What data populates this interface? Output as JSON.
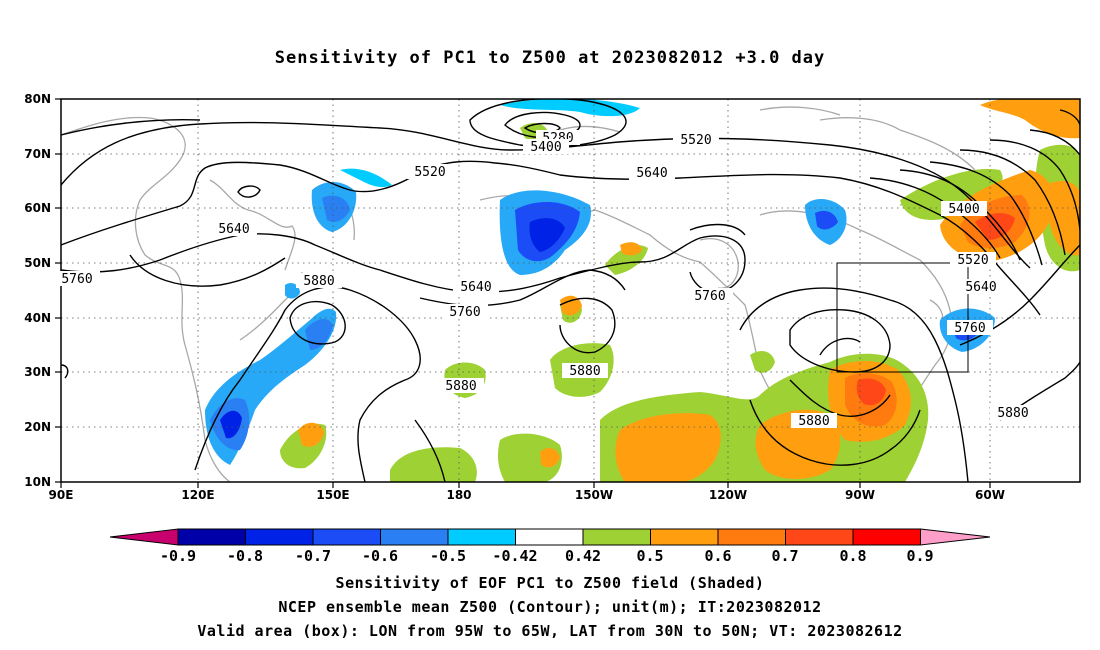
{
  "title": "Sensitivity of PC1 to Z500 at 2023082012 +3.0 day",
  "axes": {
    "lon_labels": [
      "90E",
      "120E",
      "150E",
      "180",
      "150W",
      "120W",
      "90W",
      "60W"
    ],
    "lat_labels": [
      "10N",
      "20N",
      "30N",
      "40N",
      "50N",
      "60N",
      "70N",
      "80N"
    ]
  },
  "contour_labels": [
    "5280",
    "5400",
    "5520",
    "5520",
    "5640",
    "5640",
    "5640",
    "5760",
    "5760",
    "5880",
    "5880",
    "5880",
    "5880",
    "5760",
    "5400",
    "5520",
    "5640",
    "5760",
    "5880"
  ],
  "colorbar": {
    "labels": [
      "-0.9",
      "-0.8",
      "-0.7",
      "-0.6",
      "-0.5",
      "-0.42",
      "0.42",
      "0.5",
      "0.6",
      "0.7",
      "0.8",
      "0.9"
    ],
    "colors": [
      "#c8006e",
      "#0000a8",
      "#0022e6",
      "#1c4cf5",
      "#2a7ff2",
      "#27a9f7",
      "#00ccff",
      "#ffffff",
      "#9ed133",
      "#ff9f0f",
      "#ff7a0f",
      "#ff4717",
      "#ff0000",
      "#ff9ec8"
    ]
  },
  "captions": [
    "Sensitivity of EOF PC1 to Z500 field (Shaded)",
    "NCEP ensemble mean Z500 (Contour); unit(m); IT:2023082012",
    "Valid area (box): LON from 95W to 65W, LAT from 30N to 50N; VT: 2023082612"
  ]
}
